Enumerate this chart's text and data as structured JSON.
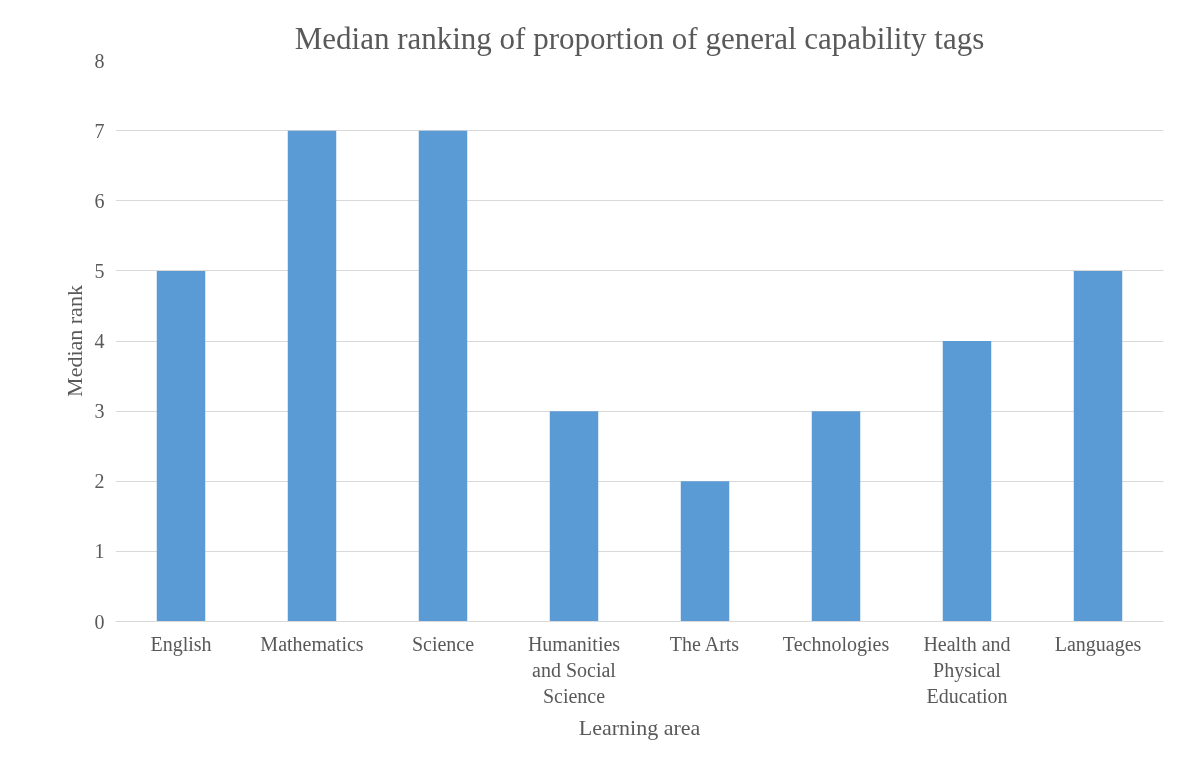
{
  "chart_data": {
    "type": "bar",
    "title": "Median ranking of proportion of general capability tags",
    "xlabel": "Learning area",
    "ylabel": "Median rank",
    "categories": [
      "English",
      "Mathematics",
      "Science",
      "Humanities and Social Science",
      "The Arts",
      "Technologies",
      "Health and Physical Education",
      "Languages"
    ],
    "values": [
      5,
      7,
      7,
      3,
      2,
      3,
      4,
      5
    ],
    "color": "#5b9bd5",
    "ylim": [
      0,
      8
    ],
    "yticks": [
      0,
      1,
      2,
      3,
      4,
      5,
      6,
      7,
      8
    ],
    "grid": "y"
  }
}
